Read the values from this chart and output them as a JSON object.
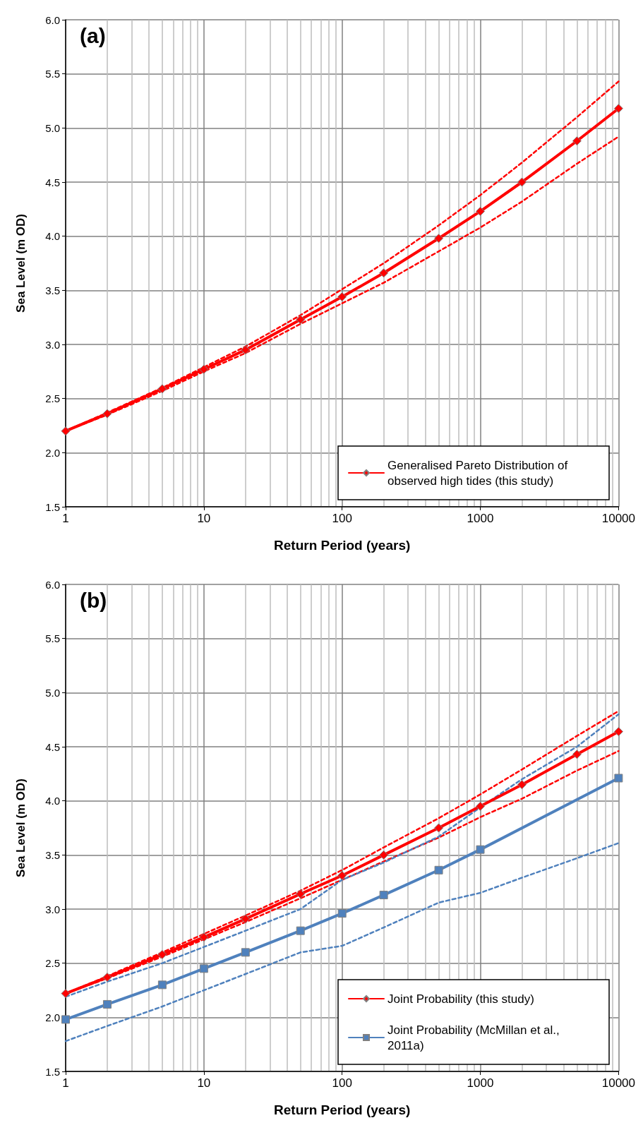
{
  "chart_data": [
    {
      "type": "line",
      "title": "(a)",
      "xlabel": "Return Period (years)",
      "ylabel": "Sea Level (m OD)",
      "log": "x",
      "grid": true,
      "legend": "bottom right",
      "x": [
        1,
        2,
        5,
        10,
        20,
        50,
        100,
        200,
        500,
        1000,
        2000,
        5000,
        10000
      ],
      "xlim": [
        1,
        10000
      ],
      "xticks": [
        1,
        10,
        100,
        1000,
        10000
      ],
      "ylim": [
        1.5,
        6.0
      ],
      "yticks": [
        {
          "value": 1.5,
          "label": "1.5"
        },
        {
          "value": 2,
          "label": "2.0"
        },
        {
          "value": 2.5,
          "label": "2.5"
        },
        {
          "value": 3,
          "label": "3.0"
        },
        {
          "value": 3.5,
          "label": "3.5"
        },
        {
          "value": 4,
          "label": "4.0"
        },
        {
          "value": 4.5,
          "label": "4.5"
        },
        {
          "value": 5,
          "label": "5.0"
        },
        {
          "value": 5.5,
          "label": "5.5"
        },
        {
          "value": 6,
          "label": "6.0"
        }
      ],
      "series": [
        {
          "name": "Generalised Pareto Distribution of observed high tides (this study)",
          "color": "#ff0000",
          "marker": "diamond",
          "line_style": "solid",
          "values": [
            2.2,
            2.36,
            2.59,
            2.77,
            2.95,
            3.23,
            3.44,
            3.66,
            3.98,
            4.23,
            4.5,
            4.88,
            5.18
          ]
        },
        {
          "color": "#ff0000",
          "marker": "none",
          "line_style": "dashed",
          "values": [
            2.2,
            2.37,
            2.6,
            2.79,
            2.98,
            3.27,
            3.51,
            3.75,
            4.1,
            4.38,
            4.68,
            5.1,
            5.43
          ]
        },
        {
          "color": "#ff0000",
          "marker": "none",
          "line_style": "dashed",
          "values": [
            2.2,
            2.35,
            2.57,
            2.75,
            2.92,
            3.19,
            3.38,
            3.57,
            3.86,
            4.08,
            4.32,
            4.67,
            4.92
          ]
        }
      ]
    },
    {
      "type": "line",
      "title": "(b)",
      "xlabel": "Return Period (years)",
      "ylabel": "Sea Level (m OD)",
      "log": "x",
      "grid": true,
      "legend": "bottom right",
      "x": [
        1,
        2,
        5,
        10,
        20,
        50,
        100,
        200,
        500,
        1000,
        2000,
        5000,
        10000
      ],
      "xlim": [
        1,
        10000
      ],
      "xticks": [
        1,
        10,
        100,
        1000,
        10000
      ],
      "ylim": [
        1.5,
        6.0
      ],
      "yticks": [
        {
          "value": 1.5,
          "label": "1.5"
        },
        {
          "value": 2,
          "label": "2.0"
        },
        {
          "value": 2.5,
          "label": "2.5"
        },
        {
          "value": 3,
          "label": "3.0"
        },
        {
          "value": 3.5,
          "label": "3.5"
        },
        {
          "value": 4,
          "label": "4.0"
        },
        {
          "value": 4.5,
          "label": "4.5"
        },
        {
          "value": 5,
          "label": "5.0"
        },
        {
          "value": 5.5,
          "label": "5.5"
        },
        {
          "value": 6,
          "label": "6.0"
        }
      ],
      "series": [
        {
          "color": "#ff0000",
          "marker": "none",
          "line_style": "dashed",
          "values": [
            2.22,
            2.38,
            2.6,
            2.77,
            2.94,
            3.17,
            3.36,
            3.57,
            3.84,
            4.06,
            4.29,
            4.6,
            4.83
          ]
        },
        {
          "color": "#ff0000",
          "marker": "none",
          "line_style": "dashed",
          "values": [
            2.22,
            2.36,
            2.56,
            2.72,
            2.88,
            3.1,
            3.27,
            3.44,
            3.66,
            3.85,
            4.02,
            4.28,
            4.46
          ]
        },
        {
          "color": "#4f81bd",
          "marker": "none",
          "line_style": "dashed",
          "values": [
            2.19,
            2.33,
            2.5,
            2.65,
            2.8,
            3.0,
            3.27,
            3.43,
            3.67,
            3.94,
            4.2,
            4.5,
            4.8
          ]
        },
        {
          "color": "#4f81bd",
          "marker": "none",
          "line_style": "dashed",
          "values": [
            1.78,
            1.92,
            2.1,
            2.25,
            2.4,
            2.6,
            2.66,
            2.83,
            3.06,
            3.15,
            3.29,
            3.47,
            3.61
          ]
        },
        {
          "name": "Joint Probability (this study)",
          "color": "#ff0000",
          "marker": "diamond",
          "line_style": "solid",
          "values": [
            2.22,
            2.37,
            2.58,
            2.74,
            2.91,
            3.14,
            3.31,
            3.5,
            3.75,
            3.95,
            4.15,
            4.43,
            4.64
          ]
        },
        {
          "name": "Joint Probability (McMillan et al., 2011a)",
          "color": "#4f81bd",
          "marker": "square",
          "line_style": "solid",
          "x": [
            1,
            2,
            5,
            10,
            20,
            50,
            100,
            200,
            500,
            1000,
            10000
          ],
          "values": [
            1.98,
            2.12,
            2.3,
            2.45,
            2.6,
            2.8,
            2.96,
            3.13,
            3.36,
            3.55,
            4.21
          ]
        }
      ]
    }
  ]
}
